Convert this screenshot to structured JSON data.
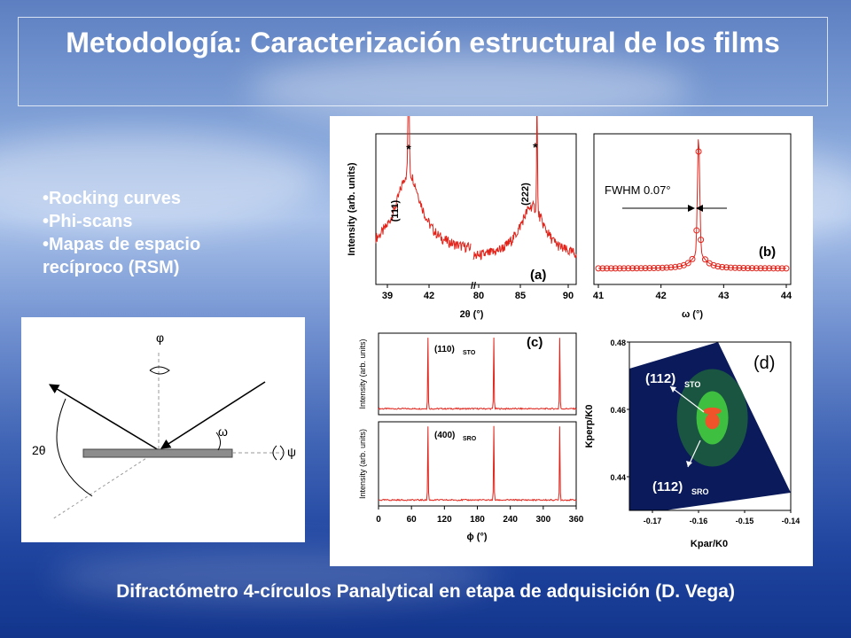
{
  "slide": {
    "title": "Metodología: Caracterización estructural de los films",
    "bullets": [
      "Rocking curves",
      "Phi-scans",
      "Mapas de espacio recíproco (RSM)"
    ],
    "caption": "Difractómetro 4-círculos Panalytical en etapa de adquisición (D. Vega)"
  },
  "diagram": {
    "phi": "φ",
    "omega": "ω",
    "two_theta": "2θ",
    "psi": "ψ"
  },
  "colors": {
    "trace": "#e2231a",
    "title_text": "#ffffff"
  },
  "chart_data": [
    {
      "panel": "(a)",
      "type": "line",
      "xlabel": "2θ (°)",
      "ylabel": "Intensity (arb. units)",
      "x_ticks": [
        "39",
        "42",
        "80",
        "85",
        "90"
      ],
      "axis_break": [
        43.5,
        79.5
      ],
      "peaks": [
        {
          "label": "(111)",
          "position": 39.9,
          "marker": "*"
        },
        {
          "label": "(222)",
          "position": 86.0,
          "marker": "*"
        }
      ]
    },
    {
      "panel": "(b)",
      "type": "line",
      "xlabel": "ω (°)",
      "xlim": [
        41,
        44
      ],
      "x_ticks": [
        "41",
        "42",
        "43",
        "44"
      ],
      "annotation": "FWHM 0.07°",
      "peak_center": 42.6
    },
    {
      "panel": "(c)",
      "type": "line",
      "xlabel": "ϕ (°)",
      "xlim": [
        0,
        360
      ],
      "x_ticks": [
        "0",
        "60",
        "120",
        "180",
        "240",
        "300",
        "360"
      ],
      "series": [
        {
          "name": "(110)STO",
          "label": "(110)",
          "sub": "STO",
          "ylabel": "Intensity (arb. units)",
          "peaks": [
            90,
            210,
            330
          ]
        },
        {
          "name": "(400)SRO",
          "label": "(400)",
          "sub": "SRO",
          "ylabel": "Intensity (arb. units)",
          "peaks": [
            90,
            210,
            330
          ]
        }
      ]
    },
    {
      "panel": "(d)",
      "type": "heatmap",
      "xlabel": "Kpar/K0",
      "ylabel": "Kperp/K0",
      "xlim": [
        -0.175,
        -0.14
      ],
      "ylim": [
        0.43,
        0.48
      ],
      "x_ticks": [
        "-0.17",
        "-0.16",
        "-0.15",
        "-0.14"
      ],
      "y_ticks": [
        "0.48",
        "0.46",
        "0.44"
      ],
      "spots": [
        {
          "label": "(112)",
          "sub": "STO",
          "kpar": -0.157,
          "kperp": 0.4595
        },
        {
          "label": "(112)",
          "sub": "SRO",
          "kpar": -0.157,
          "kperp": 0.4565
        }
      ]
    }
  ]
}
